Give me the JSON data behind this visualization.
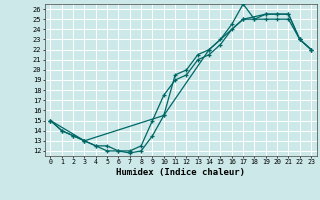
{
  "xlabel": "Humidex (Indice chaleur)",
  "xlim": [
    -0.5,
    23.5
  ],
  "ylim": [
    11.5,
    26.5
  ],
  "yticks": [
    12,
    13,
    14,
    15,
    16,
    17,
    18,
    19,
    20,
    21,
    22,
    23,
    24,
    25,
    26
  ],
  "xticks": [
    0,
    1,
    2,
    3,
    4,
    5,
    6,
    7,
    8,
    9,
    10,
    11,
    12,
    13,
    14,
    15,
    16,
    17,
    18,
    19,
    20,
    21,
    22,
    23
  ],
  "bg_color": "#cce8e8",
  "grid_color": "#ffffff",
  "line_color": "#006666",
  "line1_x": [
    0,
    1,
    2,
    3,
    4,
    5,
    6,
    7,
    8,
    9,
    10,
    11,
    12,
    13,
    14,
    15,
    16,
    17,
    18,
    19,
    20,
    21,
    22,
    23
  ],
  "line1_y": [
    15,
    14,
    13.5,
    13,
    12.5,
    12,
    12,
    11.8,
    12,
    13.5,
    15.5,
    19.5,
    20,
    21.5,
    22,
    23,
    24.5,
    26.5,
    25,
    25.5,
    25.5,
    25.5,
    23,
    22
  ],
  "line2_x": [
    0,
    1,
    2,
    3,
    4,
    5,
    6,
    7,
    8,
    9,
    10,
    11,
    12,
    13,
    14,
    15,
    16,
    17,
    18,
    19,
    20,
    21,
    22,
    23
  ],
  "line2_y": [
    15,
    14,
    13.5,
    13,
    12.5,
    12.5,
    12,
    12,
    12.5,
    15,
    17.5,
    19,
    19.5,
    21,
    21.5,
    22.5,
    24,
    25,
    25,
    25,
    25,
    25,
    23,
    22
  ],
  "line3_x": [
    0,
    3,
    10,
    14,
    17,
    19,
    20,
    21,
    22,
    23
  ],
  "line3_y": [
    15,
    13,
    15.5,
    22,
    25,
    25.5,
    25.5,
    25.5,
    23,
    22
  ]
}
